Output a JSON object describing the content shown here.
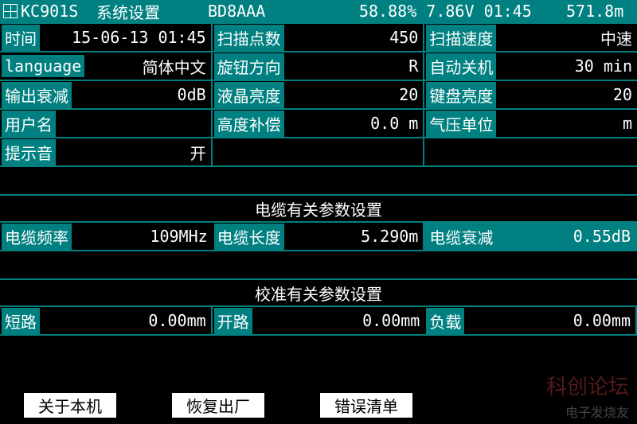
{
  "header": {
    "model": "KC901S",
    "title": "系统设置",
    "device_id": "BD8AAA",
    "battery_pct": "58.88%",
    "voltage": "7.86V",
    "time": "01:45",
    "distance": "571.8m"
  },
  "settings": {
    "r1c1_label": "时间",
    "r1c1_value": "15-06-13 01:45",
    "r1c2_label": "扫描点数",
    "r1c2_value": "450",
    "r1c3_label": "扫描速度",
    "r1c3_value": "中速",
    "r2c1_label": "language",
    "r2c1_value": "简体中文",
    "r2c2_label": "旋钮方向",
    "r2c2_value": "R",
    "r2c3_label": "自动关机",
    "r2c3_value": "30 min",
    "r3c1_label": "输出衰减",
    "r3c1_value": "0dB",
    "r3c2_label": "液晶亮度",
    "r3c2_value": "20",
    "r3c3_label": "键盘亮度",
    "r3c3_value": "20",
    "r4c1_label": "用户名",
    "r4c1_value": "",
    "r4c2_label": "高度补偿",
    "r4c2_value": "0.0 m",
    "r4c3_label": "气压单位",
    "r4c3_value": "m",
    "r5c1_label": "提示音",
    "r5c1_value": "开"
  },
  "section1": "电缆有关参数设置",
  "cable": {
    "c1_label": "电缆频率",
    "c1_value": "109MHz",
    "c2_label": "电缆长度",
    "c2_value": "5.290m",
    "c3_label": "电缆衰减",
    "c3_value": "0.55dB"
  },
  "section2": "校准有关参数设置",
  "cal": {
    "c1_label": "短路",
    "c1_value": "0.00mm",
    "c2_label": "开路",
    "c2_value": "0.00mm",
    "c3_label": "负载",
    "c3_value": "0.00mm"
  },
  "footer": {
    "b1": "关于本机",
    "b2": "恢复出厂",
    "b3": "错误清单"
  },
  "watermark1": "科创论坛",
  "watermark2": "电子发烧友"
}
